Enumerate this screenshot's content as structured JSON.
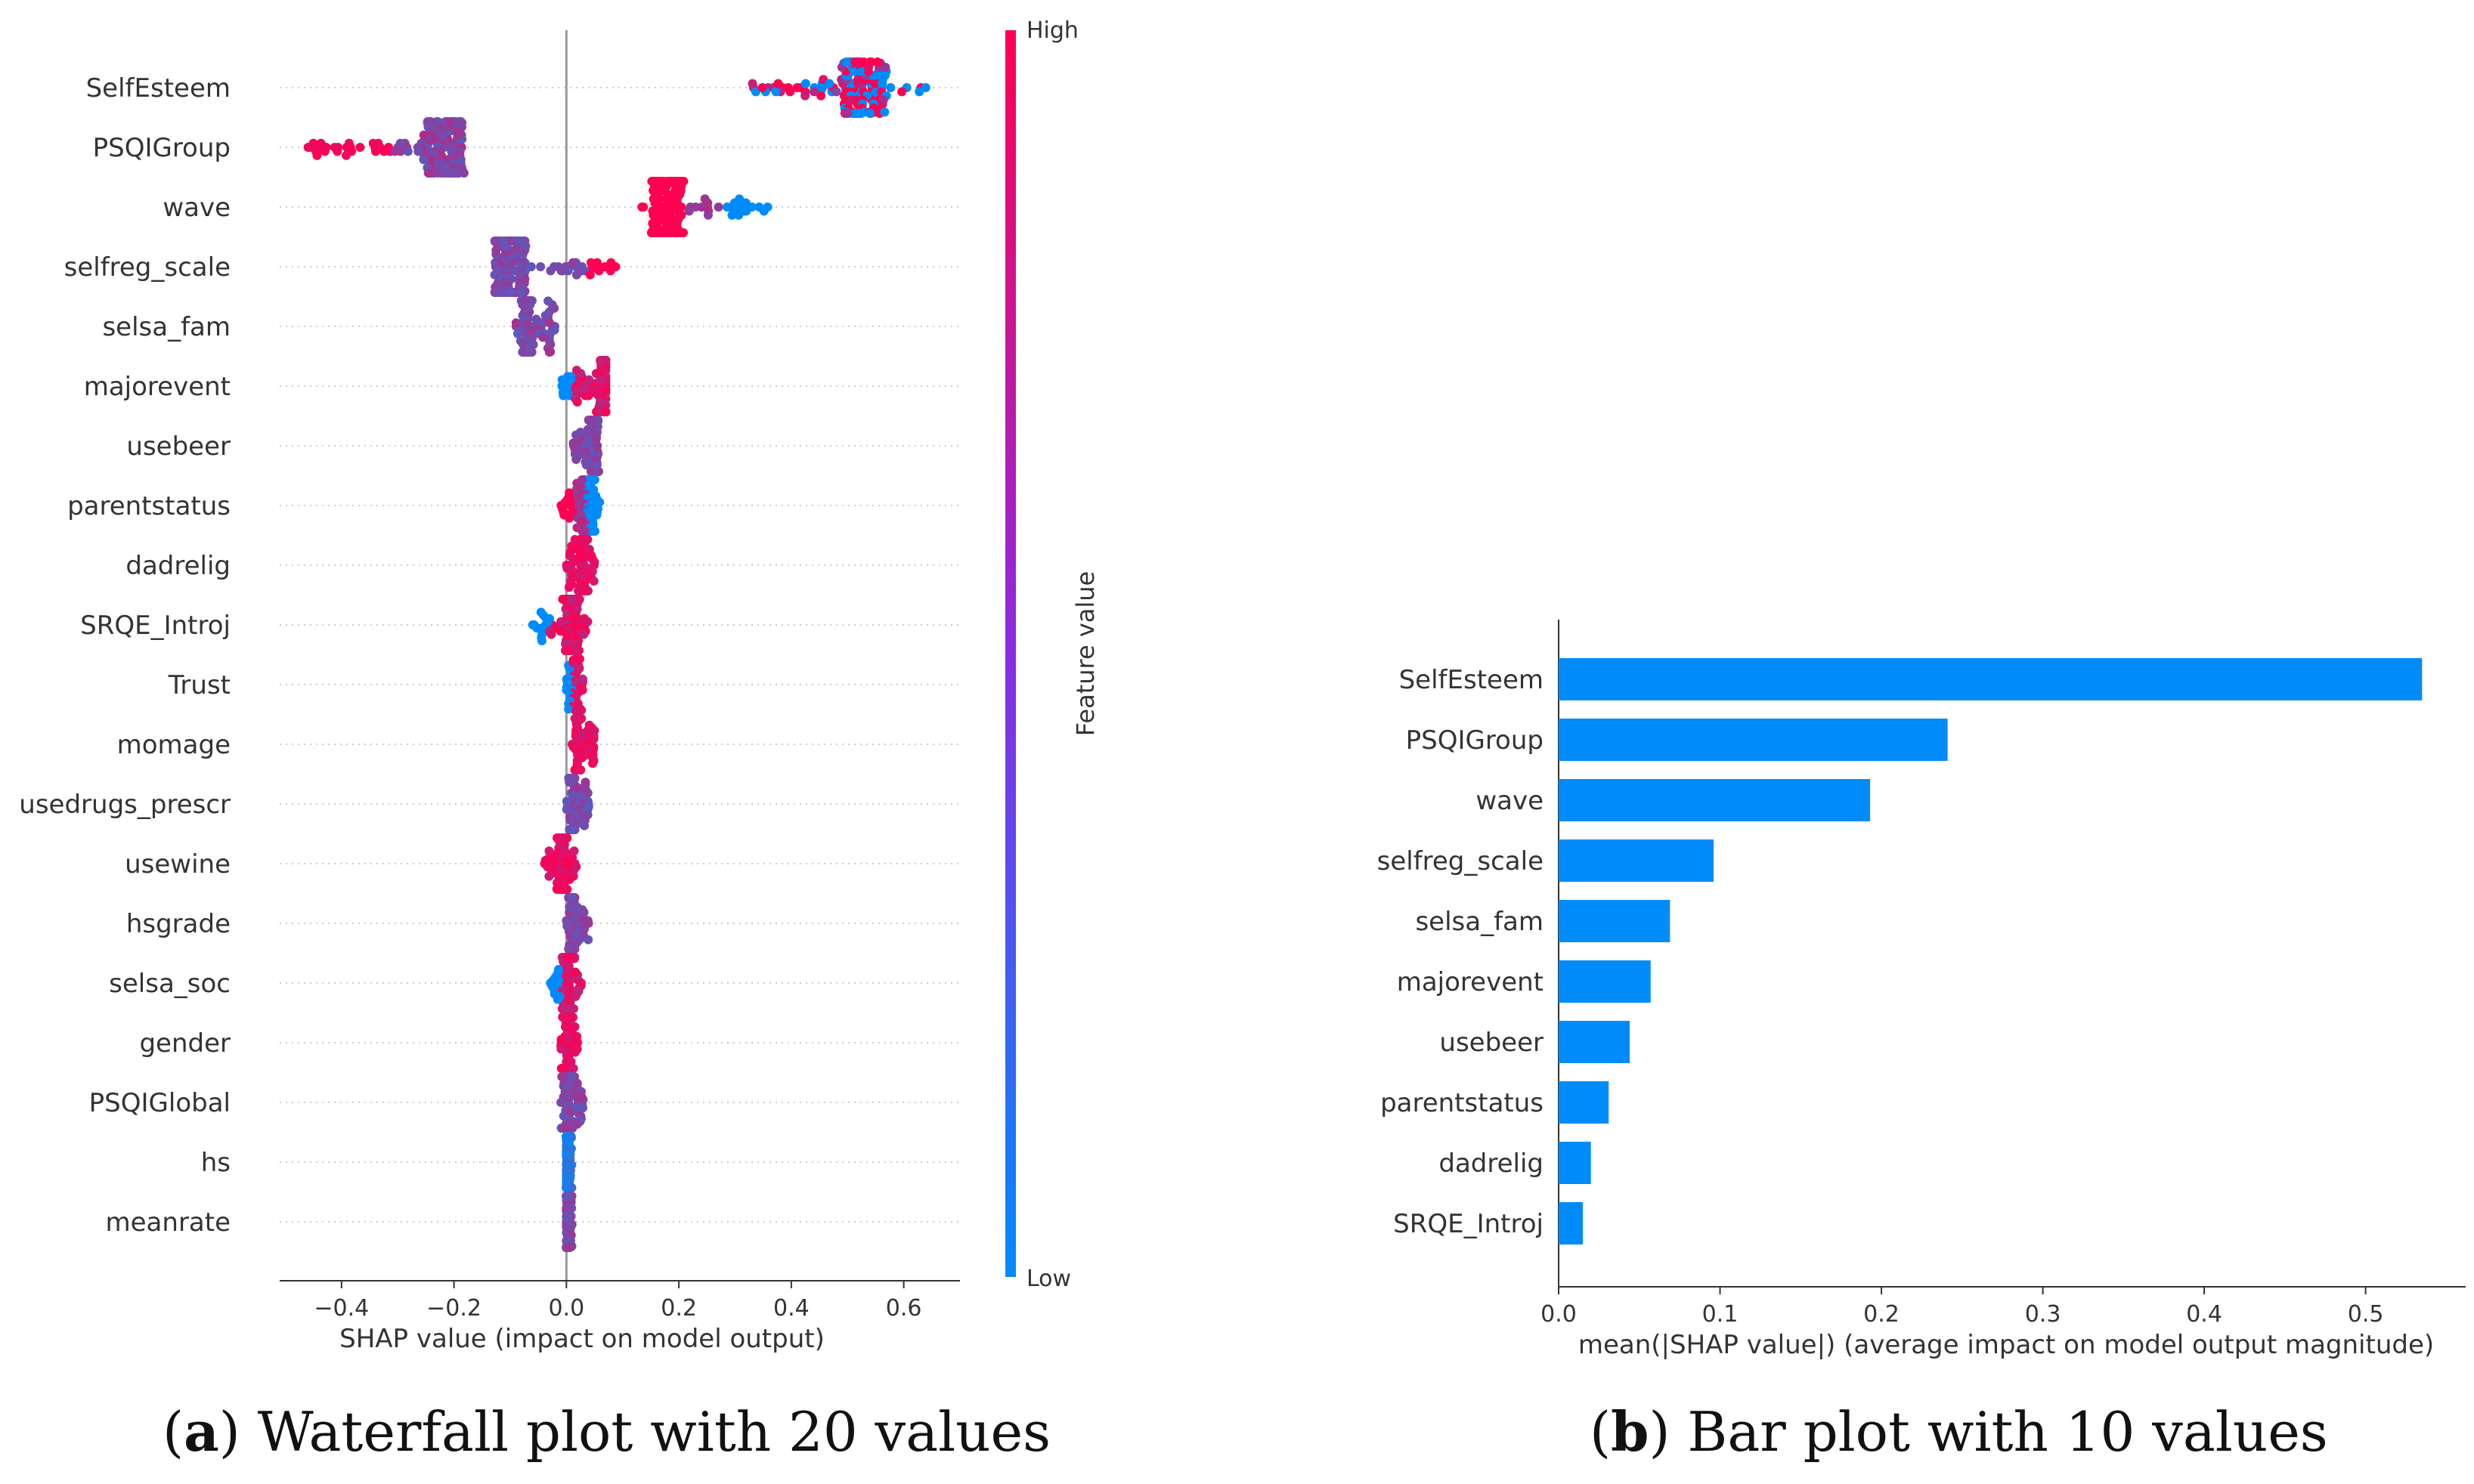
{
  "chart_data": [
    {
      "type": "scatter",
      "subtype": "beeswarm",
      "features": [
        {
          "name": "SelfEsteem",
          "min": 0.33,
          "max": 0.65,
          "center": 0.53,
          "spread": 0.9,
          "mix": "blue-red"
        },
        {
          "name": "PSQIGroup",
          "min": -0.46,
          "max": -0.18,
          "center": -0.22,
          "spread": 0.9,
          "mix": "red-left"
        },
        {
          "name": "wave",
          "min": 0.13,
          "max": 0.36,
          "center": 0.18,
          "spread": 0.9,
          "mix": "red-left-blue-right"
        },
        {
          "name": "selfreg_scale",
          "min": -0.13,
          "max": 0.09,
          "center": -0.1,
          "spread": 0.9,
          "mix": "purple-left-red-right"
        },
        {
          "name": "selsa_fam",
          "min": -0.09,
          "max": -0.02,
          "center": -0.07,
          "spread": 0.8,
          "mix": "purple"
        },
        {
          "name": "majorevent",
          "min": -0.01,
          "max": 0.07,
          "center": 0.07,
          "spread": 0.7,
          "mix": "blue-left-red-right"
        },
        {
          "name": "usebeer",
          "min": 0.01,
          "max": 0.06,
          "center": 0.05,
          "spread": 0.6,
          "mix": "purple"
        },
        {
          "name": "parentstatus",
          "min": -0.01,
          "max": 0.06,
          "center": 0.04,
          "spread": 0.7,
          "mix": "red-left-blue-right"
        },
        {
          "name": "dadrelig",
          "min": 0.0,
          "max": 0.05,
          "center": 0.03,
          "spread": 0.7,
          "mix": "red"
        },
        {
          "name": "SRQE_Introj",
          "min": -0.06,
          "max": 0.04,
          "center": 0.01,
          "spread": 0.7,
          "mix": "blue-left-red-right"
        },
        {
          "name": "Trust",
          "min": 0.0,
          "max": 0.03,
          "center": 0.02,
          "spread": 0.6,
          "mix": "blue-left-red-right"
        },
        {
          "name": "momage",
          "min": 0.01,
          "max": 0.05,
          "center": 0.02,
          "spread": 0.6,
          "mix": "red"
        },
        {
          "name": "usedrugs_prescr",
          "min": 0.0,
          "max": 0.04,
          "center": 0.01,
          "spread": 0.6,
          "mix": "purple"
        },
        {
          "name": "usewine",
          "min": -0.04,
          "max": 0.02,
          "center": -0.01,
          "spread": 0.7,
          "mix": "red"
        },
        {
          "name": "hsgrade",
          "min": 0.0,
          "max": 0.04,
          "center": 0.01,
          "spread": 0.6,
          "mix": "purple"
        },
        {
          "name": "selsa_soc",
          "min": -0.03,
          "max": 0.03,
          "center": 0.0,
          "spread": 0.6,
          "mix": "blue-left-red-right"
        },
        {
          "name": "gender",
          "min": -0.01,
          "max": 0.02,
          "center": 0.0,
          "spread": 0.7,
          "mix": "red"
        },
        {
          "name": "PSQIGlobal",
          "min": -0.01,
          "max": 0.03,
          "center": 0.0,
          "spread": 0.6,
          "mix": "purple"
        },
        {
          "name": "hs",
          "min": 0.0,
          "max": 0.01,
          "center": 0.0,
          "spread": 0.6,
          "mix": "blue"
        },
        {
          "name": "meanrate",
          "min": 0.0,
          "max": 0.01,
          "center": 0.0,
          "spread": 0.6,
          "mix": "purple"
        }
      ],
      "xlabel": "SHAP value (impact on model output)",
      "xlim": [
        -0.51,
        0.7
      ],
      "xticks": [
        -0.4,
        -0.2,
        0.0,
        0.2,
        0.4,
        0.6
      ],
      "xtick_labels": [
        "−0.4",
        "−0.2",
        "0.0",
        "0.2",
        "0.4",
        "0.6"
      ],
      "colorbar": {
        "label": "Feature value",
        "high": "High",
        "low": "Low",
        "high_color": "#ff0052",
        "low_color": "#008bfb"
      },
      "caption_letter": "a",
      "caption": "Waterfall plot with 20 values"
    },
    {
      "type": "bar",
      "orientation": "horizontal",
      "categories": [
        "SelfEsteem",
        "PSQIGroup",
        "wave",
        "selfreg_scale",
        "selsa_fam",
        "majorevent",
        "usebeer",
        "parentstatus",
        "dadrelig",
        "SRQE_Introj"
      ],
      "values": [
        0.535,
        0.241,
        0.193,
        0.096,
        0.069,
        0.057,
        0.044,
        0.031,
        0.02,
        0.015
      ],
      "xlabel": "mean(|SHAP value|) (average impact on model output magnitude)",
      "xlim": [
        0.0,
        0.562
      ],
      "xticks": [
        0.0,
        0.1,
        0.2,
        0.3,
        0.4,
        0.5
      ],
      "xtick_labels": [
        "0.0",
        "0.1",
        "0.2",
        "0.3",
        "0.4",
        "0.5"
      ],
      "bar_color": "#008bfb",
      "caption_letter": "b",
      "caption": "Bar plot with 10 values"
    }
  ]
}
